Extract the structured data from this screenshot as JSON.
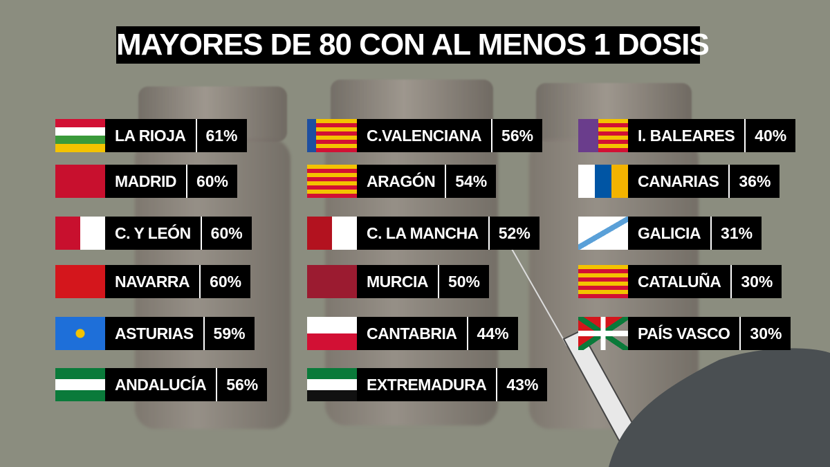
{
  "title": "MAYORES DE 80 CON AL MENOS 1 DOSIS",
  "columns": [
    {
      "rows": [
        {
          "name": "LA RIOJA",
          "value": "61%"
        },
        {
          "name": "MADRID",
          "value": "60%"
        },
        {
          "name": "C. Y LEÓN",
          "value": "60%"
        },
        {
          "name": "NAVARRA",
          "value": "60%"
        },
        {
          "name": "ASTURIAS",
          "value": "59%"
        },
        {
          "name": "ANDALUCÍA",
          "value": "56%"
        }
      ]
    },
    {
      "rows": [
        {
          "name": "C.VALENCIANA",
          "value": "56%"
        },
        {
          "name": "ARAGÓN",
          "value": "54%"
        },
        {
          "name": "C. LA MANCHA",
          "value": "52%"
        },
        {
          "name": "MURCIA",
          "value": "50%"
        },
        {
          "name": "CANTABRIA",
          "value": "44%"
        },
        {
          "name": "EXTREMADURA",
          "value": "43%"
        }
      ]
    },
    {
      "rows": [
        {
          "name": "I. BALEARES",
          "value": "40%"
        },
        {
          "name": "CANARIAS",
          "value": "36%"
        },
        {
          "name": "GALICIA",
          "value": "31%"
        },
        {
          "name": "CATALUÑA",
          "value": "30%"
        },
        {
          "name": "PAÍS VASCO",
          "value": "30%"
        }
      ]
    }
  ]
}
